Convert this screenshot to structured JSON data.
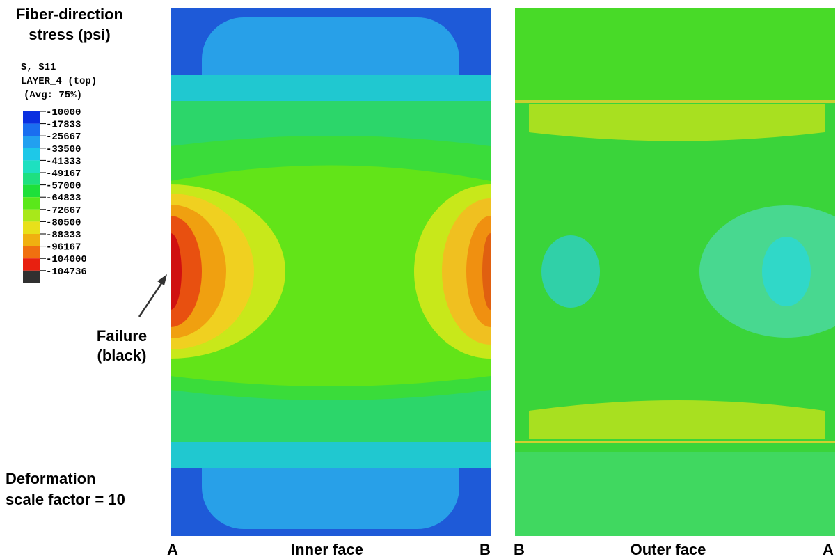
{
  "legend": {
    "title_lines": [
      "Fiber-direction",
      "stress (psi)"
    ],
    "variable": "S, S11",
    "layer": "LAYER_4 (top)",
    "averaging": "(Avg: 75%)",
    "levels": [
      -10000,
      -17833,
      -25667,
      -33500,
      -41333,
      -49167,
      -57000,
      -64833,
      -72667,
      -80500,
      -88333,
      -96167,
      -104000,
      -104736
    ],
    "colors": [
      "#0a2fe0",
      "#1a6ef0",
      "#22a0f0",
      "#1ec8e8",
      "#1ee0c0",
      "#1ee080",
      "#1ee03a",
      "#5ae81a",
      "#a8e81a",
      "#e8e01a",
      "#f0b010",
      "#f07010",
      "#e82010",
      "#303030"
    ]
  },
  "annotations": {
    "failure": [
      "Failure",
      "(black)"
    ],
    "deformation": [
      "Deformation",
      "scale factor = 10"
    ]
  },
  "panels": [
    {
      "left": "A",
      "label": "Inner face",
      "right": "B"
    },
    {
      "left": "B",
      "label": "Outer face",
      "right": "A"
    }
  ]
}
